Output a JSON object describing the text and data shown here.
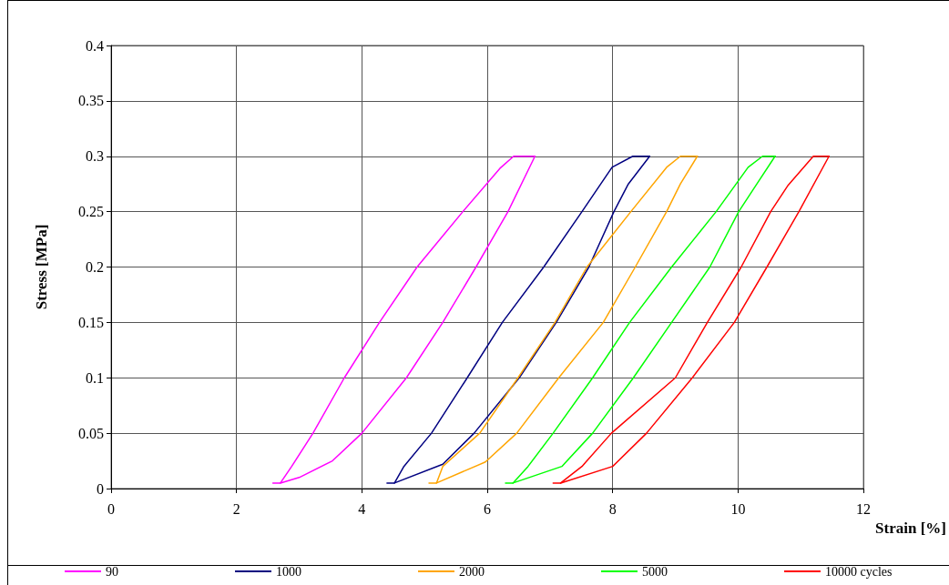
{
  "chart_data": {
    "type": "line",
    "xlabel": "Strain [%]",
    "ylabel": "Stress [MPa]",
    "xlim": [
      0,
      12
    ],
    "xticks": [
      0,
      2,
      4,
      6,
      8,
      10,
      12
    ],
    "ylim": [
      0,
      0.4
    ],
    "yticks": [
      0,
      0.05,
      0.1,
      0.15,
      0.2,
      0.25,
      0.3,
      0.35,
      0.4
    ],
    "grid": true,
    "legend": "bottom",
    "marker": "none",
    "line_style": "solid",
    "series": [
      {
        "name": "90",
        "color": "#ff00ff",
        "x": [
          2.7,
          3.0,
          3.53,
          4.0,
          4.71,
          5.29,
          5.82,
          6.33,
          6.76
        ],
        "values": [
          0.005,
          0.01,
          0.025,
          0.05,
          0.1,
          0.15,
          0.2,
          0.25,
          0.3
        ]
      },
      {
        "color": "#ff00ff",
        "x": [
          2.58,
          2.7,
          2.88,
          3.22,
          3.72,
          4.28,
          4.88,
          5.61,
          6.2,
          6.42,
          6.76
        ],
        "values": [
          0.005,
          0.005,
          0.02,
          0.05,
          0.1,
          0.15,
          0.2,
          0.25,
          0.289,
          0.3,
          0.3
        ]
      },
      {
        "name": "1000",
        "color": "#000080",
        "x": [
          4.52,
          5.29,
          5.79,
          6.51,
          7.1,
          7.62,
          8.02,
          8.25,
          8.59
        ],
        "values": [
          0.005,
          0.022,
          0.05,
          0.1,
          0.15,
          0.2,
          0.25,
          0.275,
          0.3
        ]
      },
      {
        "color": "#000080",
        "x": [
          4.4,
          4.52,
          4.67,
          5.11,
          5.68,
          6.24,
          6.9,
          7.51,
          7.99,
          8.32,
          8.59
        ],
        "values": [
          0.005,
          0.005,
          0.02,
          0.05,
          0.1,
          0.15,
          0.2,
          0.25,
          0.29,
          0.3,
          0.3
        ]
      },
      {
        "name": "2000",
        "color": "#ffa500",
        "x": [
          5.19,
          5.97,
          6.47,
          7.14,
          7.85,
          8.36,
          8.86,
          9.08,
          9.35
        ],
        "values": [
          0.005,
          0.024,
          0.05,
          0.1,
          0.15,
          0.2,
          0.25,
          0.275,
          0.3
        ]
      },
      {
        "color": "#ffa500",
        "x": [
          5.07,
          5.19,
          5.29,
          5.88,
          6.49,
          7.08,
          7.59,
          8.29,
          8.86,
          9.08,
          9.35
        ],
        "values": [
          0.005,
          0.005,
          0.02,
          0.05,
          0.1,
          0.15,
          0.2,
          0.25,
          0.29,
          0.3,
          0.3
        ]
      },
      {
        "name": "5000",
        "color": "#00ff00",
        "x": [
          6.41,
          7.19,
          7.68,
          8.33,
          8.94,
          9.55,
          10.01,
          10.3,
          10.59
        ],
        "values": [
          0.005,
          0.02,
          0.05,
          0.1,
          0.15,
          0.2,
          0.25,
          0.275,
          0.3
        ]
      },
      {
        "color": "#00ff00",
        "x": [
          6.29,
          6.41,
          6.65,
          7.05,
          7.68,
          8.27,
          8.94,
          9.65,
          10.16,
          10.39,
          10.59
        ],
        "values": [
          0.005,
          0.005,
          0.02,
          0.05,
          0.1,
          0.15,
          0.2,
          0.25,
          0.29,
          0.3,
          0.3
        ]
      },
      {
        "name": "10000 cycles",
        "color": "#ff0000",
        "x": [
          7.17,
          8.0,
          8.54,
          9.27,
          9.94,
          10.46,
          10.97,
          11.45
        ],
        "values": [
          0.005,
          0.02,
          0.05,
          0.1,
          0.15,
          0.2,
          0.25,
          0.3
        ]
      },
      {
        "color": "#ff0000",
        "x": [
          7.05,
          7.17,
          7.51,
          7.98,
          9.0,
          9.51,
          10.05,
          10.52,
          10.8,
          11.2,
          11.45
        ],
        "values": [
          0.005,
          0.005,
          0.02,
          0.05,
          0.1,
          0.15,
          0.2,
          0.25,
          0.274,
          0.3,
          0.3
        ]
      }
    ]
  }
}
